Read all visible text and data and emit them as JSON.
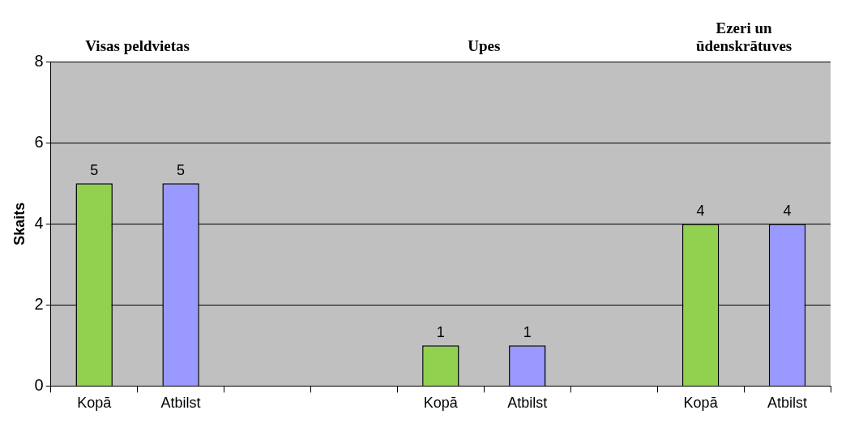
{
  "chart_data": {
    "type": "bar",
    "ylabel": "Skaits",
    "categories": [
      "Kopā",
      "Atbilst",
      null,
      null,
      "Kopā",
      "Atbilst",
      null,
      "Kopā",
      "Atbilst"
    ],
    "series": [
      {
        "color": "#92d050",
        "values": [
          5,
          null,
          null,
          null,
          1,
          null,
          null,
          4,
          null
        ]
      },
      {
        "color": "#9999ff",
        "values": [
          null,
          5,
          null,
          null,
          null,
          1,
          null,
          null,
          4
        ]
      }
    ],
    "ylim": [
      0,
      8
    ],
    "yticks": [
      0,
      2,
      4,
      6,
      8
    ],
    "grid": "y",
    "data_labels": true,
    "annotations": [
      "Visas peldvietas",
      "Upes",
      "Ezeri un ūdenskrātuves"
    ]
  }
}
